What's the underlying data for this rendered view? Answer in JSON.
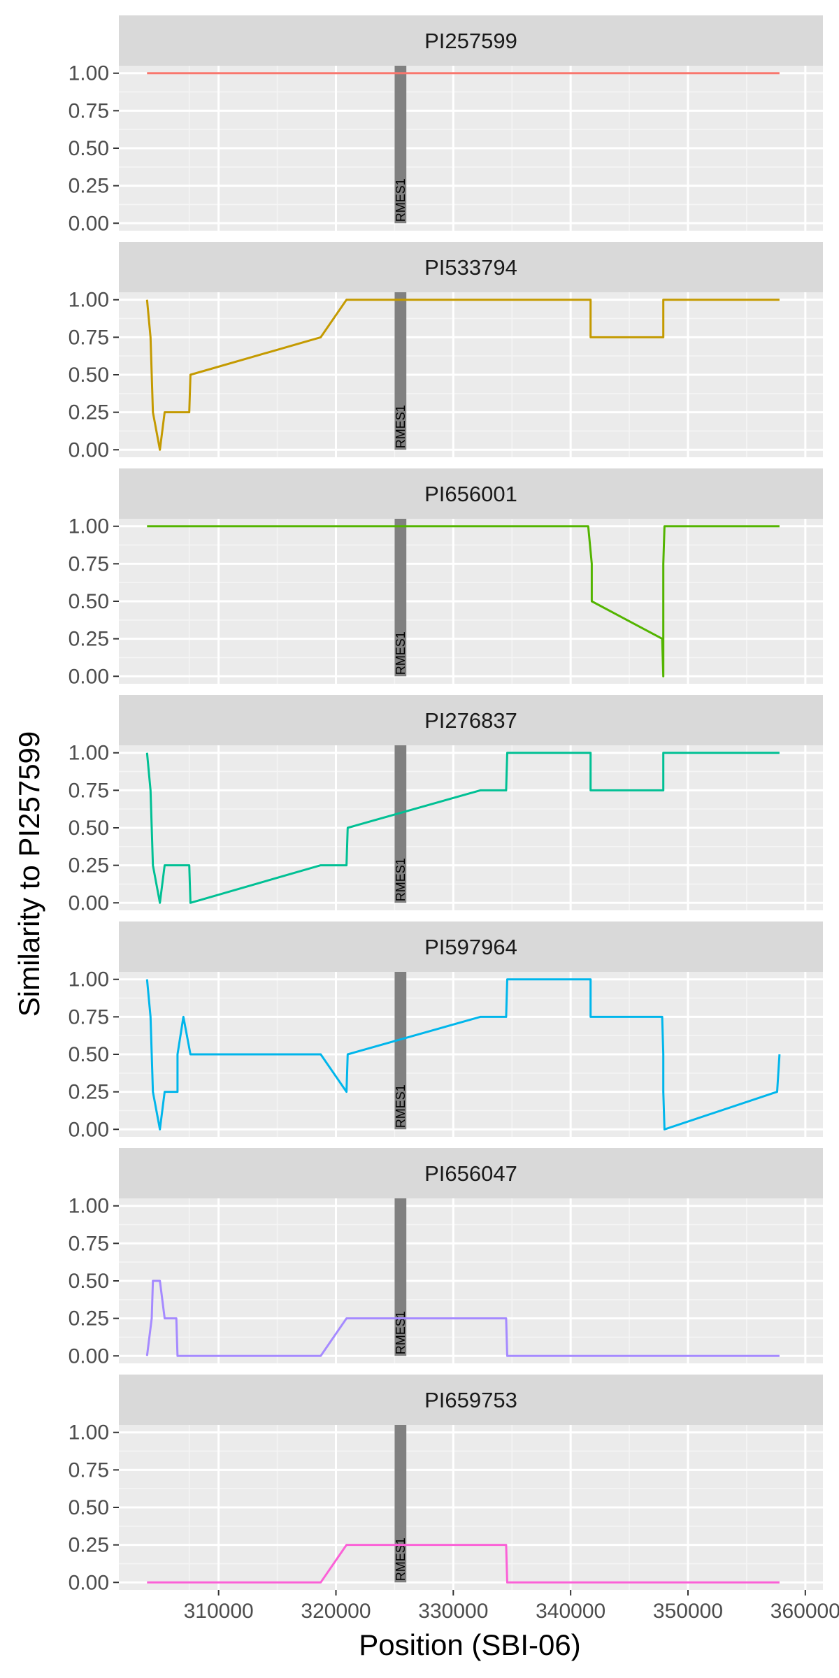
{
  "chart_data": {
    "type": "line",
    "xlabel": "Position (SBI-06)",
    "ylabel": "Similarity to PI257599",
    "xlim": [
      301500,
      361500
    ],
    "ylim": [
      -0.05,
      1.05
    ],
    "x_ticks": [
      310000,
      320000,
      330000,
      340000,
      350000,
      360000
    ],
    "x_tick_labels": [
      "310000",
      "320000",
      "330000",
      "340000",
      "350000",
      "360000"
    ],
    "y_ticks": [
      0,
      0.25,
      0.5,
      0.75,
      1.0
    ],
    "y_tick_labels": [
      "0.00",
      "0.25",
      "0.50",
      "0.75",
      "1.00"
    ],
    "grid": true,
    "facets": "vertical",
    "region": {
      "label": "RMES1",
      "x_start": 325000,
      "x_end": 326000,
      "y_start": 0,
      "y_end": 1.05,
      "color": "#808080"
    },
    "series": [
      {
        "name": "PI257599",
        "color": "#F8766D",
        "x": [
          303900,
          357800
        ],
        "y": [
          1,
          1
        ]
      },
      {
        "name": "PI533794",
        "color": "#C49A00",
        "x": [
          303900,
          304200,
          304300,
          304400,
          305000,
          305400,
          306500,
          307500,
          307600,
          318700,
          320900,
          341700,
          341700,
          347900,
          347900,
          357800
        ],
        "y": [
          1,
          0.75,
          0.5,
          0.25,
          0,
          0.25,
          0.25,
          0.25,
          0.5,
          0.75,
          1,
          1,
          0.75,
          0.75,
          1,
          1
        ]
      },
      {
        "name": "PI656001",
        "color": "#53B400",
        "x": [
          303900,
          341500,
          341800,
          341800,
          347800,
          347900,
          347900,
          348000,
          357800
        ],
        "y": [
          1,
          1,
          0.75,
          0.5,
          0.25,
          0,
          0.75,
          1,
          1
        ]
      },
      {
        "name": "PI276837",
        "color": "#00C094",
        "x": [
          303900,
          304200,
          304300,
          304400,
          305000,
          305400,
          306500,
          307500,
          307600,
          318700,
          320900,
          321000,
          332300,
          334500,
          334600,
          341700,
          341700,
          347900,
          347900,
          357800
        ],
        "y": [
          1,
          0.75,
          0.5,
          0.25,
          0,
          0.25,
          0.25,
          0.25,
          0,
          0.25,
          0.25,
          0.5,
          0.75,
          0.75,
          1,
          1,
          0.75,
          0.75,
          1,
          1
        ]
      },
      {
        "name": "PI597964",
        "color": "#00B6EB",
        "x": [
          303900,
          304200,
          304300,
          304400,
          305000,
          305400,
          306500,
          306500,
          307000,
          307600,
          318700,
          320900,
          321000,
          332300,
          334500,
          334600,
          341700,
          341700,
          347800,
          347900,
          347900,
          348000,
          357600,
          357800
        ],
        "y": [
          1,
          0.75,
          0.5,
          0.25,
          0,
          0.25,
          0.25,
          0.5,
          0.75,
          0.5,
          0.5,
          0.25,
          0.5,
          0.75,
          0.75,
          1,
          1,
          0.75,
          0.75,
          0.5,
          0.25,
          0,
          0.25,
          0.5
        ],
        "comment": ""
      },
      {
        "name": "PI656047",
        "color": "#A58AFF",
        "x": [
          303900,
          304300,
          304400,
          305000,
          305400,
          305800,
          306400,
          306500,
          318700,
          320900,
          334500,
          334600,
          357800
        ],
        "y": [
          0,
          0.25,
          0.5,
          0.5,
          0.25,
          0.25,
          0.25,
          0,
          0,
          0.25,
          0.25,
          0,
          0
        ]
      },
      {
        "name": "PI659753",
        "color": "#FB61D7",
        "x": [
          303900,
          318700,
          320900,
          334500,
          334600,
          357800
        ],
        "y": [
          0,
          0,
          0.25,
          0.25,
          0,
          0
        ]
      }
    ]
  }
}
